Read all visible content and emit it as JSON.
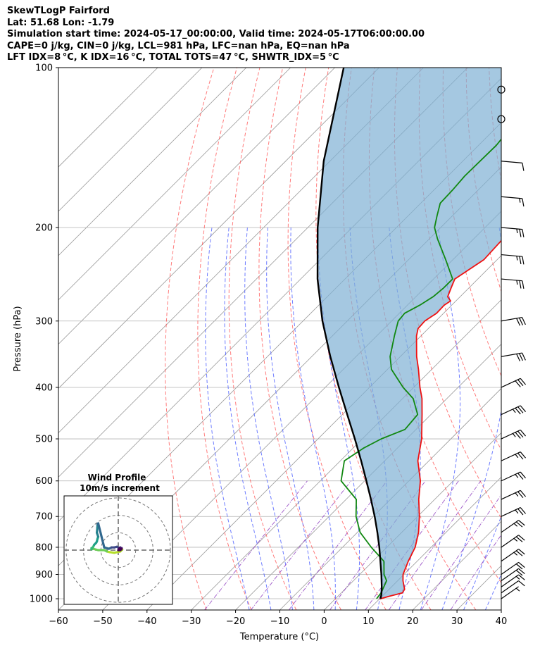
{
  "header": {
    "line1": "SkewTLogP Fairford",
    "line2": "Lat: 51.68   Lon: -1.79",
    "line3": "Simulation start time: 2024-05-17_00:00:00, Valid time: 2024-05-17T06:00:00.00",
    "line4": "CAPE=0 j/kg, CIN=0 j/kg, LCL=981 hPa, LFC=nan hPa, EQ=nan hPa",
    "line5": "LFT IDX=8 °C, K IDX=16 °C, TOTAL TOTS=47 °C, SHWTR_IDX=5 °C"
  },
  "colors": {
    "temperature": "#ee1111",
    "dewpoint": "#118811",
    "parcel": "#000000",
    "cape_fill": "#7fb0d4",
    "dry_adiabat": "#ff5050",
    "moist_adiabat": "#4a5cff",
    "mixing_ratio": "#9040c0",
    "isotherm": "#999999"
  },
  "chart_data": {
    "type": "line",
    "subtype": "skew-T log-P",
    "xlabel": "Temperature (°C)",
    "ylabel": "Pressure (hPa)",
    "xlim": [
      -60,
      40
    ],
    "ylim": [
      1050,
      100
    ],
    "y_scale": "log",
    "x_ticks": [
      "−60",
      "−50",
      "−40",
      "−30",
      "−20",
      "−10",
      "0",
      "10",
      "20",
      "30",
      "40"
    ],
    "y_ticks": [
      "100",
      "200",
      "300",
      "400",
      "500",
      "600",
      "700",
      "800",
      "900",
      "1000"
    ],
    "grid": true,
    "series": [
      {
        "key": "temperature",
        "p": [
          1000,
          990,
          975,
          960,
          925,
          900,
          850,
          800,
          750,
          700,
          650,
          600,
          550,
          500,
          450,
          420,
          400,
          370,
          350,
          320,
          310,
          300,
          290,
          280,
          275,
          270,
          260,
          250,
          230,
          210,
          200,
          180,
          160,
          150,
          130,
          115,
          100
        ],
        "t": [
          10.2,
          11.5,
          13.8,
          13.5,
          11.2,
          9.8,
          8.0,
          6.4,
          3.8,
          0.4,
          -3.6,
          -7.4,
          -12.5,
          -16.6,
          -22.0,
          -25.6,
          -28.6,
          -33.0,
          -36.3,
          -41.0,
          -42.3,
          -42.5,
          -41.6,
          -41.7,
          -41.2,
          -42.8,
          -44.0,
          -45.2,
          -43.0,
          -43.4,
          -43.8,
          -46.0,
          -50.0,
          -52.4,
          -54.2,
          -55.2,
          -57.0
        ]
      },
      {
        "key": "dewpoint",
        "p": [
          1000,
          975,
          925,
          900,
          850,
          800,
          750,
          700,
          650,
          600,
          550,
          520,
          500,
          480,
          450,
          420,
          400,
          370,
          350,
          320,
          300,
          290,
          280,
          270,
          260,
          250,
          230,
          210,
          200,
          190,
          180,
          170,
          160,
          140,
          120,
          100
        ],
        "t": [
          9.3,
          9.0,
          7.5,
          5.5,
          2.5,
          -3.5,
          -9.4,
          -13.9,
          -17.7,
          -25.3,
          -29.1,
          -27.6,
          -25.7,
          -22.5,
          -23.0,
          -27.6,
          -32.4,
          -39.1,
          -42.3,
          -46.0,
          -48.5,
          -48.8,
          -47.2,
          -46.1,
          -45.7,
          -45.7,
          -51.6,
          -58.2,
          -61.4,
          -63.5,
          -65.6,
          -65.8,
          -66.2,
          -66.0,
          -67.5,
          -71.0
        ]
      },
      {
        "key": "parcel",
        "p": [
          1000,
          981,
          950,
          900,
          850,
          800,
          750,
          700,
          650,
          600,
          550,
          500,
          450,
          400,
          350,
          300,
          250,
          200,
          150,
          100
        ],
        "t": [
          10.2,
          9.4,
          7.8,
          4.9,
          1.7,
          -1.7,
          -5.5,
          -9.7,
          -14.4,
          -19.6,
          -25.3,
          -31.7,
          -38.9,
          -46.9,
          -55.8,
          -65.6,
          -76.2,
          -87.8,
          -101.4,
          -118.0
        ]
      }
    ],
    "wind_barbs": [
      {
        "p": 1000,
        "speed_kt": 7
      },
      {
        "p": 975,
        "speed_kt": 10
      },
      {
        "p": 950,
        "speed_kt": 15
      },
      {
        "p": 925,
        "speed_kt": 20
      },
      {
        "p": 900,
        "speed_kt": 20
      },
      {
        "p": 850,
        "speed_kt": 25
      },
      {
        "p": 800,
        "speed_kt": 25
      },
      {
        "p": 750,
        "speed_kt": 25
      },
      {
        "p": 700,
        "speed_kt": 25
      },
      {
        "p": 650,
        "speed_kt": 25
      },
      {
        "p": 600,
        "speed_kt": 25
      },
      {
        "p": 550,
        "speed_kt": 25
      },
      {
        "p": 500,
        "speed_kt": 35
      },
      {
        "p": 450,
        "speed_kt": 35
      },
      {
        "p": 400,
        "speed_kt": 30
      },
      {
        "p": 350,
        "speed_kt": 30
      },
      {
        "p": 300,
        "speed_kt": 30
      },
      {
        "p": 250,
        "speed_kt": 25
      },
      {
        "p": 225,
        "speed_kt": 25
      },
      {
        "p": 200,
        "speed_kt": 25
      },
      {
        "p": 175,
        "speed_kt": 15
      },
      {
        "p": 150,
        "speed_kt": 10
      },
      {
        "p": 125,
        "speed_kt": 0
      },
      {
        "p": 110,
        "speed_kt": 0
      }
    ],
    "hodograph": {
      "title": "Wind Profile",
      "subtitle": "10m/s increment",
      "rings_ms": [
        10,
        20,
        30
      ],
      "u": [
        3.0,
        1.5,
        -3.0,
        -6.5,
        -8.5,
        -10.5,
        -15.0,
        -19.0,
        -20.0,
        -20.0,
        -20.0,
        -19.0,
        -18.0,
        -16.5,
        -16.0,
        -15.5,
        -15.0,
        -16.0,
        -15.6,
        -15.5,
        -15.0,
        -10.5,
        -7.0,
        -5.0,
        -3.0,
        -1.0,
        0.5,
        1.5,
        1.0,
        2.0,
        2.5,
        1.0,
        0.0,
        1.5,
        2.5
      ],
      "v": [
        0.5,
        -1.0,
        -2.0,
        -1.5,
        -1.0,
        0.0,
        0.0,
        1.0,
        0.5,
        1.0,
        1.5,
        2.0,
        4.0,
        5.5,
        6.5,
        8.5,
        10.0,
        13.0,
        17.0,
        19.5,
        20.0,
        2.0,
        1.0,
        2.0,
        2.0,
        2.5,
        1.5,
        2.0,
        1.0,
        0.5,
        1.5,
        1.5,
        0.0,
        0.0,
        1.0
      ],
      "colorscale": [
        "#b5de2b",
        "#6ece58",
        "#35b779",
        "#1f9e89",
        "#26828e",
        "#31688e",
        "#3e4989",
        "#482878",
        "#440154"
      ]
    }
  }
}
